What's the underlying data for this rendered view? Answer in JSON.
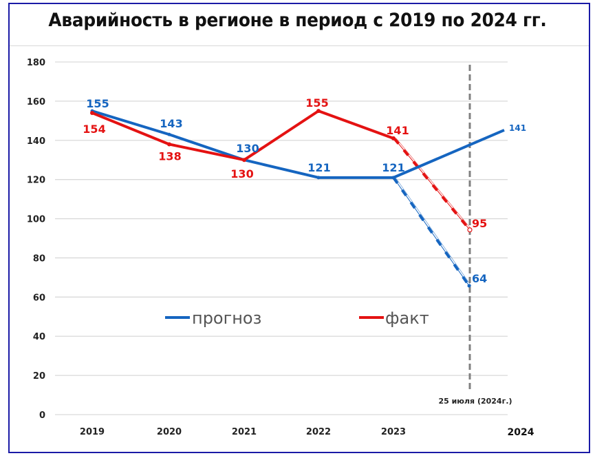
{
  "chart_data": {
    "type": "line",
    "title": "Аварийность в регионе в период с 2019 по 2024 гг.",
    "xlabel": "",
    "ylabel": "",
    "ylim": [
      0,
      180
    ],
    "y_ticks": [
      "0",
      "20",
      "40",
      "60",
      "80",
      "100",
      "120",
      "140",
      "160",
      "180"
    ],
    "categories": [
      "2019",
      "2020",
      "2021",
      "2022",
      "2023"
    ],
    "x_extra_label": "2024",
    "marker_label": "25 июля (2024г.)",
    "grid": true,
    "legend_position": "center",
    "series": [
      {
        "name": "прогноз",
        "color": "#1565c0",
        "values": [
          155,
          143,
          130,
          121,
          121
        ],
        "labels": [
          "155",
          "143",
          "130",
          "121",
          "121"
        ],
        "projection_2024": 141,
        "projection_label": "141",
        "actual_25_july": 64,
        "actual_25_july_label": "64"
      },
      {
        "name": "факт",
        "color": "#e41212",
        "values": [
          154,
          138,
          130,
          155,
          141
        ],
        "labels": [
          "154",
          "138",
          "130",
          "155",
          "141"
        ],
        "actual_25_july": 95,
        "actual_25_july_label": "95"
      }
    ]
  }
}
